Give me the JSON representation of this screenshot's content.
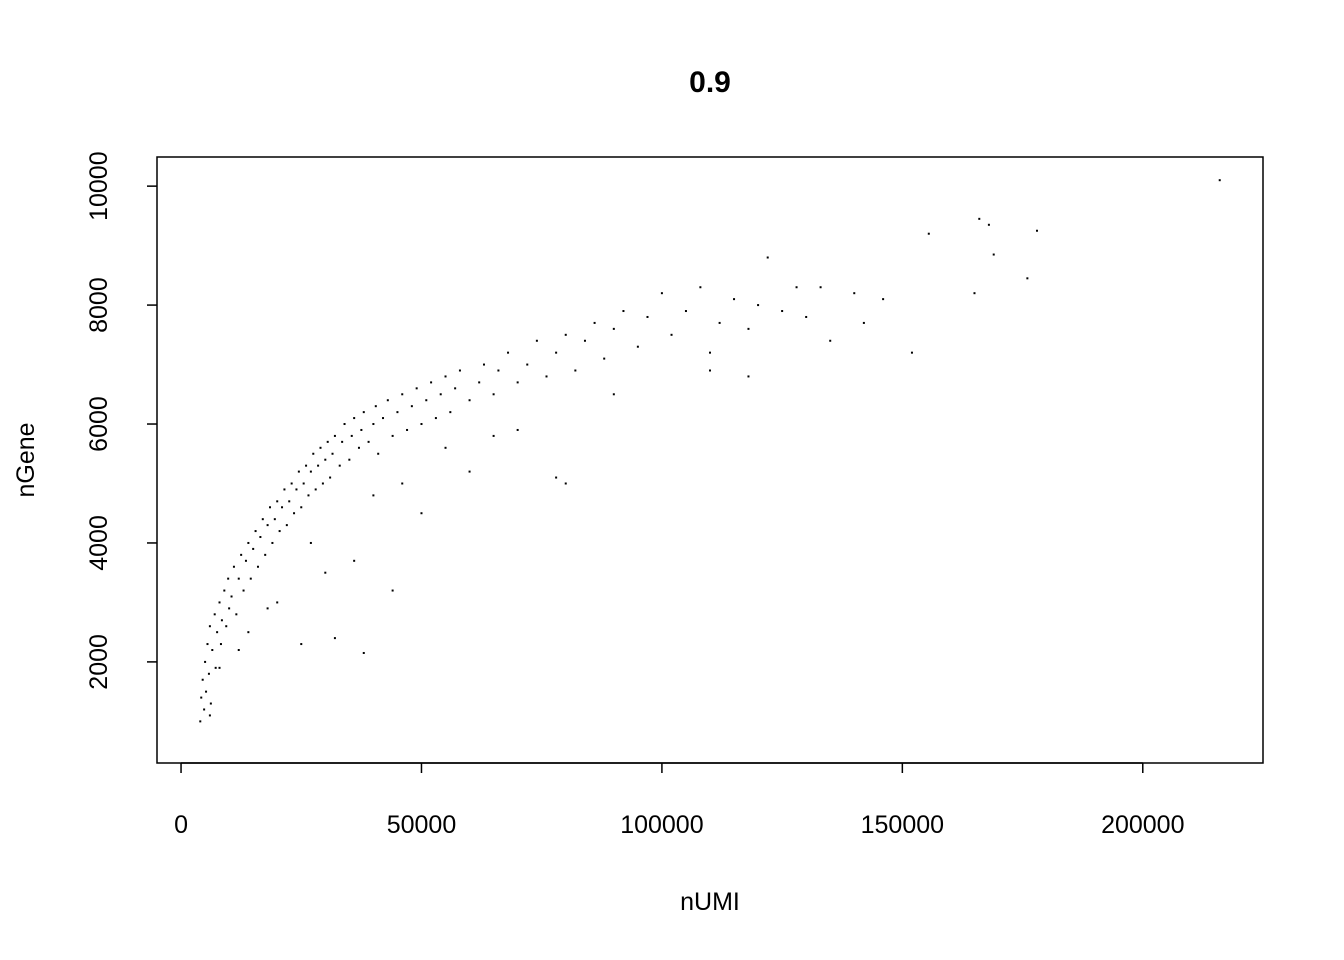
{
  "chart_data": {
    "type": "scatter",
    "title": "0.9",
    "xlabel": "nUMI",
    "ylabel": "nGene",
    "xlim": [
      -5000,
      225000
    ],
    "ylim": [
      300,
      10490
    ],
    "xticks": [
      0,
      50000,
      100000,
      150000,
      200000
    ],
    "xtick_labels": [
      "0",
      "50000",
      "100000",
      "150000",
      "200000"
    ],
    "yticks": [
      2000,
      4000,
      6000,
      8000,
      10000
    ],
    "ytick_labels": [
      "2000",
      "4000",
      "6000",
      "8000",
      "10000"
    ],
    "grid": false,
    "point_color": "#000000",
    "points": [
      [
        4000,
        1000
      ],
      [
        4200,
        1400
      ],
      [
        4500,
        1700
      ],
      [
        4800,
        1200
      ],
      [
        5000,
        2000
      ],
      [
        5200,
        1500
      ],
      [
        5500,
        2300
      ],
      [
        5800,
        1800
      ],
      [
        6000,
        2600
      ],
      [
        6200,
        1300
      ],
      [
        6500,
        2200
      ],
      [
        7000,
        2800
      ],
      [
        7200,
        1900
      ],
      [
        7500,
        2500
      ],
      [
        8000,
        3000
      ],
      [
        8300,
        2300
      ],
      [
        8500,
        2700
      ],
      [
        9000,
        3200
      ],
      [
        9400,
        2600
      ],
      [
        9800,
        3400
      ],
      [
        10000,
        2900
      ],
      [
        10500,
        3100
      ],
      [
        11000,
        3600
      ],
      [
        11500,
        2800
      ],
      [
        12000,
        3400
      ],
      [
        12500,
        3800
      ],
      [
        13000,
        3200
      ],
      [
        13500,
        3700
      ],
      [
        14000,
        4000
      ],
      [
        14500,
        3400
      ],
      [
        15000,
        3900
      ],
      [
        15500,
        4200
      ],
      [
        16000,
        3600
      ],
      [
        16500,
        4100
      ],
      [
        17000,
        4400
      ],
      [
        17500,
        3800
      ],
      [
        18000,
        4300
      ],
      [
        18500,
        4600
      ],
      [
        19000,
        4000
      ],
      [
        19500,
        4400
      ],
      [
        20000,
        4700
      ],
      [
        20500,
        4200
      ],
      [
        21000,
        4600
      ],
      [
        21500,
        4900
      ],
      [
        22000,
        4300
      ],
      [
        22500,
        4700
      ],
      [
        23000,
        5000
      ],
      [
        23500,
        4500
      ],
      [
        24000,
        4900
      ],
      [
        24500,
        5200
      ],
      [
        25000,
        4600
      ],
      [
        25500,
        5000
      ],
      [
        26000,
        5300
      ],
      [
        26500,
        4800
      ],
      [
        27000,
        5200
      ],
      [
        27500,
        5500
      ],
      [
        28000,
        4900
      ],
      [
        28500,
        5300
      ],
      [
        29000,
        5600
      ],
      [
        29500,
        5000
      ],
      [
        30000,
        5400
      ],
      [
        30500,
        5700
      ],
      [
        31000,
        5100
      ],
      [
        31500,
        5500
      ],
      [
        32000,
        5800
      ],
      [
        33000,
        5300
      ],
      [
        33500,
        5700
      ],
      [
        34000,
        6000
      ],
      [
        35000,
        5400
      ],
      [
        35500,
        5800
      ],
      [
        36000,
        6100
      ],
      [
        37000,
        5600
      ],
      [
        37500,
        5900
      ],
      [
        38000,
        6200
      ],
      [
        39000,
        5700
      ],
      [
        40000,
        6000
      ],
      [
        40500,
        6300
      ],
      [
        41000,
        5500
      ],
      [
        42000,
        6100
      ],
      [
        43000,
        6400
      ],
      [
        44000,
        5800
      ],
      [
        45000,
        6200
      ],
      [
        46000,
        6500
      ],
      [
        47000,
        5900
      ],
      [
        48000,
        6300
      ],
      [
        49000,
        6600
      ],
      [
        50000,
        6000
      ],
      [
        51000,
        6400
      ],
      [
        52000,
        6700
      ],
      [
        53000,
        6100
      ],
      [
        54000,
        6500
      ],
      [
        55000,
        6800
      ],
      [
        56000,
        6200
      ],
      [
        57000,
        6600
      ],
      [
        58000,
        6900
      ],
      [
        60000,
        6400
      ],
      [
        62000,
        6700
      ],
      [
        63000,
        7000
      ],
      [
        65000,
        6500
      ],
      [
        66000,
        6900
      ],
      [
        68000,
        7200
      ],
      [
        70000,
        6700
      ],
      [
        72000,
        7000
      ],
      [
        74000,
        7400
      ],
      [
        76000,
        6800
      ],
      [
        78000,
        7200
      ],
      [
        80000,
        7500
      ],
      [
        82000,
        6900
      ],
      [
        84000,
        7400
      ],
      [
        86000,
        7700
      ],
      [
        88000,
        7100
      ],
      [
        90000,
        7600
      ],
      [
        92000,
        7900
      ],
      [
        95000,
        7300
      ],
      [
        97000,
        7800
      ],
      [
        100000,
        8200
      ],
      [
        102000,
        7500
      ],
      [
        105000,
        7900
      ],
      [
        108000,
        8300
      ],
      [
        110000,
        7200
      ],
      [
        112000,
        7700
      ],
      [
        115000,
        8100
      ],
      [
        118000,
        7600
      ],
      [
        120000,
        8000
      ],
      [
        122000,
        8800
      ],
      [
        125000,
        7900
      ],
      [
        128000,
        8300
      ],
      [
        130000,
        7800
      ],
      [
        133000,
        8300
      ],
      [
        135000,
        7400
      ],
      [
        140000,
        8200
      ],
      [
        142000,
        7700
      ],
      [
        146000,
        8100
      ],
      [
        152000,
        7200
      ],
      [
        155500,
        9200
      ],
      [
        165000,
        8200
      ],
      [
        166000,
        9450
      ],
      [
        168000,
        9350
      ],
      [
        169000,
        8850
      ],
      [
        176000,
        8450
      ],
      [
        178000,
        9250
      ],
      [
        216000,
        10100
      ],
      [
        20000,
        3000
      ],
      [
        25000,
        2300
      ],
      [
        32000,
        2400
      ],
      [
        38000,
        2150
      ],
      [
        44000,
        3200
      ],
      [
        30000,
        3500
      ],
      [
        36000,
        3700
      ],
      [
        50000,
        4500
      ],
      [
        60000,
        5200
      ],
      [
        78000,
        5100
      ],
      [
        80000,
        5000
      ],
      [
        70000,
        5900
      ],
      [
        65000,
        5800
      ],
      [
        90000,
        6500
      ],
      [
        110000,
        6900
      ],
      [
        118000,
        6800
      ],
      [
        14000,
        2500
      ],
      [
        18000,
        2900
      ],
      [
        12000,
        2200
      ],
      [
        8000,
        1900
      ],
      [
        6000,
        1100
      ],
      [
        27000,
        4000
      ],
      [
        40000,
        4800
      ],
      [
        46000,
        5000
      ],
      [
        55000,
        5600
      ]
    ]
  }
}
